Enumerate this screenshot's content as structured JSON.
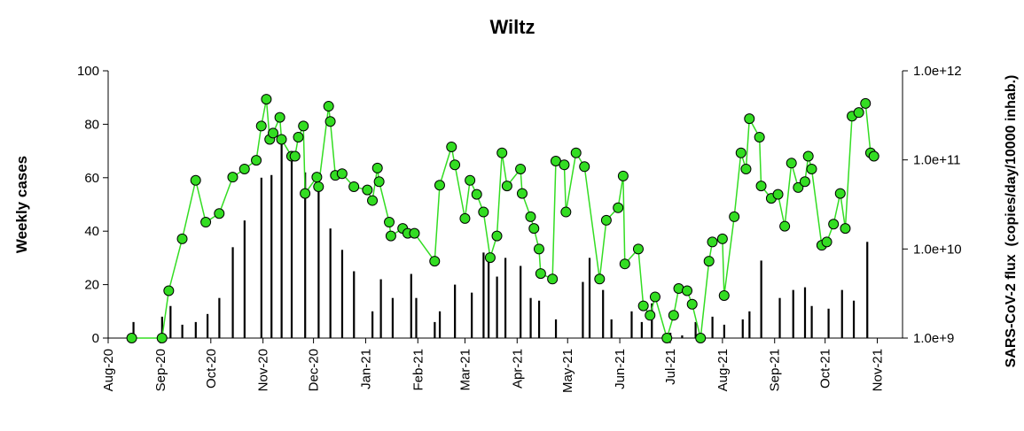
{
  "chart_data": {
    "type": "bar-line",
    "title": "Wiltz",
    "y_label": "Weekly cases",
    "y2_label": "SARS-CoV-2 flux  (copies/day/10000 inhab.)",
    "xlim": [
      0,
      472
    ],
    "xticks": [
      {
        "value": 0,
        "label": "Aug-20"
      },
      {
        "value": 31,
        "label": "Sep-20"
      },
      {
        "value": 61,
        "label": "Oct-20"
      },
      {
        "value": 92,
        "label": "Nov-20"
      },
      {
        "value": 122,
        "label": "Dec-20"
      },
      {
        "value": 153,
        "label": "Jan-21"
      },
      {
        "value": 184,
        "label": "Feb-21"
      },
      {
        "value": 212,
        "label": "Mar-21"
      },
      {
        "value": 243,
        "label": "Apr-21"
      },
      {
        "value": 273,
        "label": "May-21"
      },
      {
        "value": 304,
        "label": "Jun-21"
      },
      {
        "value": 334,
        "label": "Jul-21"
      },
      {
        "value": 365,
        "label": "Aug-21"
      },
      {
        "value": 396,
        "label": "Sep-21"
      },
      {
        "value": 426,
        "label": "Oct-21"
      },
      {
        "value": 457,
        "label": "Nov-21"
      }
    ],
    "ylim": [
      0,
      100
    ],
    "yticks": [
      0,
      20,
      40,
      60,
      80,
      100
    ],
    "y2lim": [
      1000000000,
      1000000000000
    ],
    "y2ticks": [
      {
        "value": 1000000000,
        "label": "1.0e+9"
      },
      {
        "value": 10000000000,
        "label": "1.0e+10"
      },
      {
        "value": 100000000000,
        "label": "1.0e+11"
      },
      {
        "value": 1000000000000,
        "label": "1.0e+12"
      }
    ],
    "y2_log": true,
    "series": [
      {
        "type": "bar",
        "color": "#000000",
        "x": [
          15,
          32,
          37,
          44,
          52,
          59,
          66,
          74,
          81,
          91,
          97,
          103,
          109,
          117,
          125,
          132,
          139,
          146,
          157,
          162,
          169,
          180,
          183,
          194,
          197,
          206,
          216,
          223,
          226,
          231,
          236,
          245,
          251,
          256,
          266,
          282,
          286,
          294,
          299,
          311,
          317,
          323,
          334,
          341,
          349,
          359,
          366,
          377,
          381,
          388,
          399,
          407,
          414,
          418,
          428,
          436,
          443,
          451
        ],
        "values": [
          6,
          8,
          12,
          5,
          6,
          9,
          15,
          34,
          44,
          60,
          61,
          74,
          69,
          62,
          57,
          41,
          33,
          25,
          10,
          22,
          15,
          24,
          15,
          6,
          10,
          20,
          17,
          32,
          31,
          23,
          30,
          27,
          15,
          14,
          7,
          21,
          30,
          18,
          7,
          10,
          6,
          13,
          2,
          1,
          6,
          8,
          5,
          7,
          10,
          29,
          15,
          18,
          19,
          12,
          11,
          18,
          14,
          36
        ]
      },
      {
        "type": "line",
        "color": "#33dd22",
        "axis": "y2",
        "x": [
          14,
          32,
          36,
          44,
          52,
          58,
          66,
          74,
          81,
          88,
          91,
          94,
          96,
          98,
          102,
          103,
          109,
          111,
          113,
          116,
          117,
          124,
          125,
          131,
          132,
          135,
          139,
          146,
          154,
          157,
          160,
          161,
          167,
          168,
          175,
          178,
          182,
          194,
          197,
          204,
          206,
          212,
          215,
          219,
          223,
          227,
          231,
          234,
          237,
          245,
          246,
          251,
          253,
          256,
          257,
          264,
          266,
          271,
          272,
          278,
          283,
          292,
          296,
          303,
          306,
          307,
          315,
          318,
          322,
          325,
          332,
          336,
          339,
          344,
          347,
          352,
          357,
          359,
          365,
          366,
          372,
          376,
          379,
          381,
          387,
          388,
          394,
          398,
          402,
          406,
          410,
          414,
          416,
          418,
          424,
          427,
          431,
          435,
          438,
          442,
          446,
          450,
          453,
          455
        ],
        "values": [
          1000000000,
          1000000000,
          3400000000,
          13000000000,
          59000000000,
          20000000000,
          25000000000,
          64000000000,
          79000000000,
          99000000000,
          240000000000,
          480000000000,
          170000000000,
          200000000000,
          300000000000,
          170000000000,
          110000000000,
          110000000000,
          180000000000,
          240000000000,
          42000000000,
          64000000000,
          50000000000,
          400000000000,
          270000000000,
          67000000000,
          70000000000,
          50000000000,
          46000000000,
          35000000000,
          81000000000,
          57000000000,
          20000000000,
          14000000000,
          17000000000,
          15000000000,
          15000000000,
          7300000000,
          52000000000,
          140000000000,
          88000000000,
          22000000000,
          59000000000,
          41000000000,
          26000000000,
          8000000000,
          14000000000,
          120000000000,
          51000000000,
          79000000000,
          42000000000,
          23000000000,
          17000000000,
          10000000000,
          5300000000,
          4600000000,
          97000000000,
          88000000000,
          26000000000,
          120000000000,
          84000000000,
          4600000000,
          21000000000,
          29000000000,
          66000000000,
          6800000000,
          10000000000,
          2300000000,
          1800000000,
          2900000000,
          1000000000,
          1800000000,
          3600000000,
          3400000000,
          2400000000,
          1000000000,
          7300000000,
          12000000000,
          13000000000,
          3000000000,
          23000000000,
          120000000000,
          79000000000,
          290000000000,
          180000000000,
          51000000000,
          37000000000,
          41000000000,
          18000000000,
          92000000000,
          49000000000,
          57000000000,
          110000000000,
          79000000000,
          11000000000,
          12000000000,
          19000000000,
          42000000000,
          17000000000,
          310000000000,
          340000000000,
          430000000000,
          120000000000,
          110000000000
        ]
      }
    ]
  }
}
